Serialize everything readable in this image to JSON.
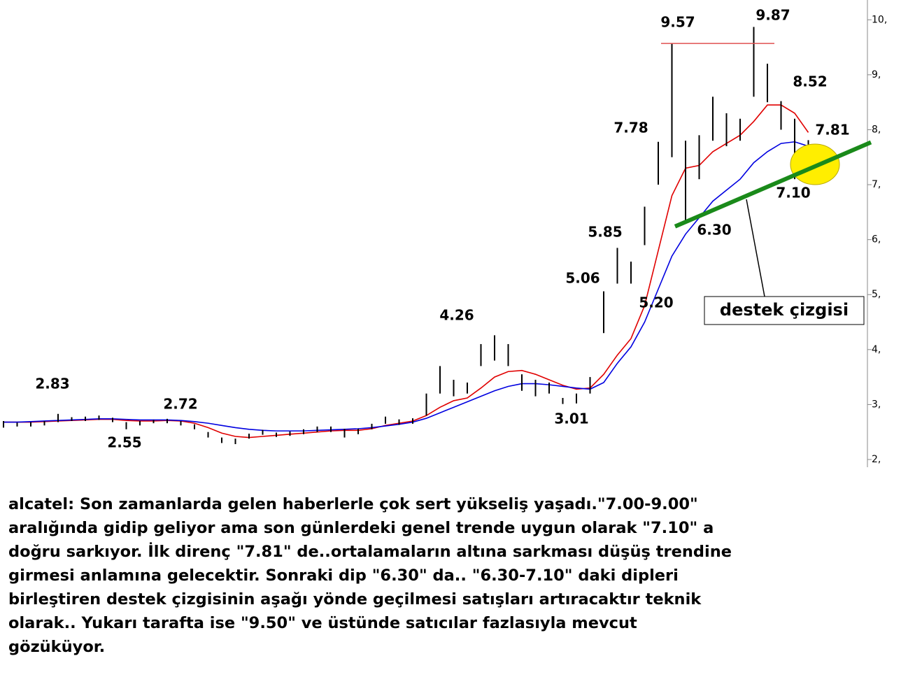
{
  "chart_data": {
    "type": "candlestick",
    "ylim": [
      1.86,
      10.36
    ],
    "yticks": [
      {
        "value": 2,
        "label": "2,"
      },
      {
        "value": 3,
        "label": "3,"
      },
      {
        "value": 4,
        "label": "4,"
      },
      {
        "value": 5,
        "label": "5,"
      },
      {
        "value": 6,
        "label": "6,"
      },
      {
        "value": 7,
        "label": "7,"
      },
      {
        "value": 8,
        "label": "8,"
      },
      {
        "value": 9,
        "label": "9,"
      },
      {
        "value": 10,
        "label": "10,"
      }
    ],
    "low": [
      2.58,
      2.6,
      2.6,
      2.62,
      2.68,
      2.7,
      2.7,
      2.72,
      2.68,
      2.55,
      2.62,
      2.66,
      2.66,
      2.62,
      2.55,
      2.4,
      2.3,
      2.28,
      2.38,
      2.45,
      2.41,
      2.43,
      2.46,
      2.5,
      2.5,
      2.4,
      2.46,
      2.55,
      2.65,
      2.63,
      2.65,
      2.8,
      3.2,
      3.15,
      3.2,
      3.7,
      3.8,
      3.7,
      3.25,
      3.15,
      3.2,
      3.01,
      3.02,
      3.2,
      4.3,
      5.2,
      5.2,
      5.9,
      7.0,
      7.5,
      6.3,
      7.1,
      7.8,
      7.7,
      7.8,
      8.6,
      8.5,
      8.0,
      7.1,
      7.4
    ],
    "high": [
      2.7,
      2.67,
      2.68,
      2.7,
      2.83,
      2.77,
      2.78,
      2.8,
      2.76,
      2.68,
      2.7,
      2.72,
      2.74,
      2.7,
      2.64,
      2.5,
      2.4,
      2.38,
      2.47,
      2.54,
      2.49,
      2.51,
      2.55,
      2.6,
      2.6,
      2.56,
      2.56,
      2.65,
      2.78,
      2.73,
      2.75,
      3.2,
      3.7,
      3.45,
      3.4,
      4.1,
      4.26,
      4.1,
      3.55,
      3.45,
      3.4,
      3.12,
      3.2,
      3.5,
      5.06,
      5.85,
      5.6,
      6.6,
      7.78,
      9.57,
      7.8,
      7.9,
      8.6,
      8.3,
      8.2,
      9.87,
      9.2,
      8.52,
      8.2,
      7.81
    ],
    "candle_color": "#000000",
    "series": [
      {
        "color": "#e00000",
        "values": [
          2.68,
          2.68,
          2.68,
          2.69,
          2.7,
          2.71,
          2.72,
          2.73,
          2.73,
          2.71,
          2.7,
          2.7,
          2.71,
          2.7,
          2.66,
          2.58,
          2.48,
          2.42,
          2.4,
          2.42,
          2.44,
          2.46,
          2.48,
          2.5,
          2.52,
          2.53,
          2.53,
          2.56,
          2.62,
          2.66,
          2.7,
          2.8,
          2.95,
          3.07,
          3.12,
          3.3,
          3.5,
          3.6,
          3.62,
          3.55,
          3.45,
          3.35,
          3.28,
          3.3,
          3.55,
          3.9,
          4.2,
          4.8,
          5.8,
          6.8,
          7.3,
          7.35,
          7.6,
          7.75,
          7.9,
          8.15,
          8.45,
          8.45,
          8.3,
          7.95
        ]
      },
      {
        "color": "#0000e0",
        "values": [
          2.68,
          2.68,
          2.69,
          2.7,
          2.71,
          2.72,
          2.73,
          2.74,
          2.74,
          2.73,
          2.72,
          2.72,
          2.72,
          2.71,
          2.69,
          2.66,
          2.62,
          2.58,
          2.55,
          2.53,
          2.52,
          2.52,
          2.52,
          2.53,
          2.54,
          2.55,
          2.56,
          2.58,
          2.61,
          2.64,
          2.68,
          2.75,
          2.85,
          2.95,
          3.05,
          3.15,
          3.25,
          3.33,
          3.38,
          3.38,
          3.36,
          3.33,
          3.3,
          3.28,
          3.4,
          3.75,
          4.05,
          4.5,
          5.1,
          5.7,
          6.1,
          6.4,
          6.7,
          6.9,
          7.1,
          7.4,
          7.6,
          7.75,
          7.78,
          7.7
        ]
      }
    ],
    "resistance": {
      "value": 9.57,
      "color": "#e05050"
    },
    "support": {
      "values": [
        6.24,
        7.77
      ],
      "color": "#1a8a1a",
      "label": "destek çizgisi"
    },
    "annotations": [
      "2.83",
      "2.55",
      "2.72",
      "3.01",
      "4.26",
      "5.06",
      "5.85",
      "5.20",
      "7.78",
      "9.57",
      "9.87",
      "8.52",
      "7.81",
      "6.30",
      "7.10"
    ]
  },
  "text": {
    "lines": [
      "alcatel: Son zamanlarda gelen haberlerle çok sert yükseliş yaşadı.\"7.00-9.00\"",
      "aralığında gidip geliyor ama son günlerdeki genel trende uygun olarak \"7.10\" a",
      "doğru sarkıyor. İlk direnç \"7.81\" de..ortalamaların altına sarkması düşüş trendine",
      "girmesi anlamına gelecektir. Sonraki dip \"6.30\" da.. \"6.30-7.10\" daki dipleri",
      "birleştiren destek çizgisinin aşağı yönde geçilmesi satışları artıracaktır teknik",
      "olarak.. Yukarı tarafta ise \"9.50\" ve üstünde satıcılar fazlasıyla mevcut",
      "gözüküyor."
    ]
  }
}
